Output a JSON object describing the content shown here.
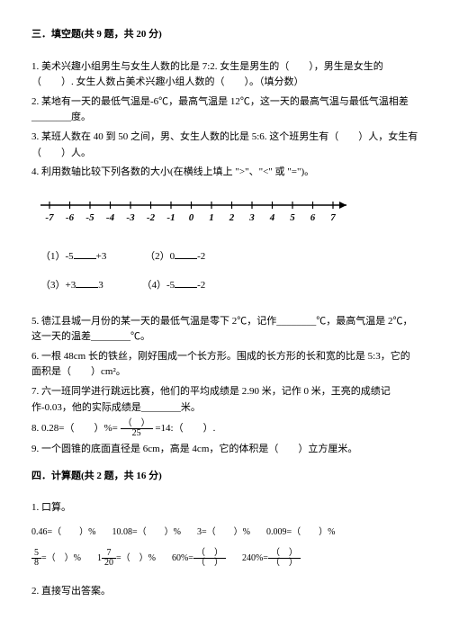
{
  "section3": {
    "title": "三．填空题(共 9 题，共 20 分)",
    "q1": "1. 美术兴趣小组男生与女生人数的比是 7:2. 女生是男生的（　　），男生是女生的（　　）. 女生人数占美术兴趣小组人数的（　　）。（填分数）",
    "q2": "2. 某地有一天的最低气温是-6℃，最高气温是 12℃，这一天的最高气温与最低气温相差________度。",
    "q3": "3. 某班人数在 40 到 50 之间，男、女生人数的比是 5:6. 这个班男生有（　　）人，女生有（　　）人。",
    "q4": "4. 利用数轴比较下列各数的大小(在横线上填上 \">\"、\"<\" 或 \"=\")。",
    "sub1_a": "（1）-5",
    "sub1_b": "+3",
    "sub2_a": "（2）0",
    "sub2_b": "-2",
    "sub3_a": "（3）+3",
    "sub3_b": "3",
    "sub4_a": "（4）-5",
    "sub4_b": "-2",
    "q5": "5. 德江县城一月份的某一天的最低气温是零下 2℃，记作________℃，最高气温是 2℃，这一天的温差________℃。",
    "q6": "6. 一根 48cm 长的铁丝，刚好围成一个长方形。围成的长方形的长和宽的比是 5:3，它的面积是（　　）cm²。",
    "q7": "7. 六一班同学进行跳远比赛，他们的平均成绩是 2.90 米，记作 0 米，王亮的成绩记作-0.03，他的实际成绩是________米。",
    "q8_a": "8. 0.28=（　　）%=",
    "q8_b": "=14:（　　）.",
    "q8_frac_d": "25",
    "q9": "9. 一个圆锥的底面直径是 6cm，高是 4cm，它的体积是（　　）立方厘米。",
    "numberline": {
      "ticks": [
        "-7",
        "-6",
        "-5",
        "-4",
        "-3",
        "-2",
        "-1",
        "0",
        "1",
        "2",
        "3",
        "4",
        "5",
        "6",
        "7"
      ]
    }
  },
  "section4": {
    "title": "四．计算题(共 2 题，共 16 分)",
    "q1": "1. 口算。",
    "row1": {
      "a": "0.46=（　　）%",
      "b": "10.08=（　　）%",
      "c": "3=（　　）%",
      "d": "0.009=（　　）%"
    },
    "row2": {
      "a_n": "5",
      "a_d": "8",
      "a_t": "=（　）%",
      "b_pre": "1",
      "b_n": "7",
      "b_d": "20",
      "b_t": "=（　）%",
      "c_l": "60%=",
      "c_t": "",
      "d_l": "240%=",
      "d_t": ""
    },
    "q2": "2. 直接写出答案。"
  }
}
